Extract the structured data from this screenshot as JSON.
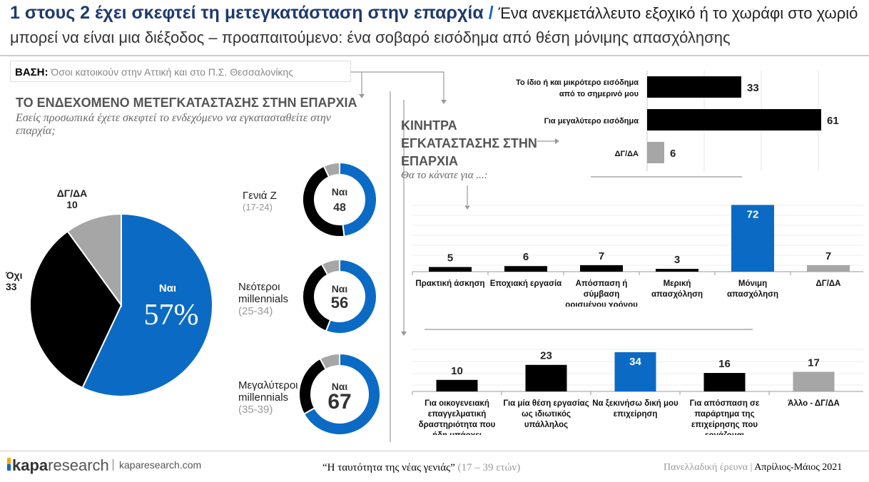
{
  "header": {
    "title_bold": "1 στους 2 έχει σκεφτεί τη μετεγκατάσταση στην επαρχία",
    "separator": "/",
    "title_rest": "Ένα ανεκμετάλλευτο εξοχικό ή το χωράφι στο χωριό",
    "subtitle": "μπορεί να είναι μια διέξοδος – προαπαιτούμενο: ένα σοβαρό εισόδημα από θέση μόνιμης απασχόλησης"
  },
  "base": {
    "label": "ΒΑΣΗ:",
    "value": "Όσοι κατοικούν στην Αττική και στο Π.Σ. Θεσσαλονίκης"
  },
  "left": {
    "title": "ΤΟ ΕΝΔΕΧΟΜΕΝΟ ΜΕΤΕΓΚΑΤΑΣΤΑΣΗΣ ΣΤΗΝ ΕΠΑΡΧΙΑ",
    "question": "Εσείς προσωπικά έχετε σκεφτεί το ενδεχόμενο να εγκατασταθείτε στην επαρχία;"
  },
  "right": {
    "title_l1": "ΚΙΝΗΤΡΑ",
    "title_l2": "ΕΓΚΑΤΑΣΤΑΣΗΣ ΣΤΗΝ",
    "title_l3": "ΕΠΑΡΧΙΑ",
    "question": "Θα το κάνατε για ...:"
  },
  "colors": {
    "yes": "#0b6bc4",
    "no": "#000000",
    "dk": "#a6a6a6",
    "title": "#1f3a6d"
  },
  "chart_data": [
    {
      "type": "pie",
      "slices": [
        {
          "label": "Ναι",
          "value": 57,
          "display": "57%",
          "color": "#0b6bc4"
        },
        {
          "label": "Όχι",
          "value": 33,
          "color": "#000000"
        },
        {
          "label": "ΔΓ/ΔΑ",
          "value": 10,
          "color": "#a6a6a6"
        }
      ]
    },
    {
      "type": "donut",
      "groups": [
        {
          "name": "Γενιά Ζ",
          "range": "(17-24)",
          "center_label": "Ναι",
          "values": [
            48,
            45,
            7
          ]
        },
        {
          "name_l1": "Νεότεροι",
          "name_l2": "millennials",
          "range": "(25-34)",
          "center_label": "Ναι",
          "values": [
            56,
            36,
            8
          ]
        },
        {
          "name_l1": "Μεγαλύτεροι",
          "name_l2": "millennials",
          "range": "(35-39)",
          "center_label": "Ναι",
          "values": [
            67,
            25,
            8
          ]
        }
      ]
    },
    {
      "type": "bar",
      "orientation": "horizontal",
      "categories": [
        "Το ίδιο ή και μικρότερο εισόδημα από το σημερινό μου",
        "Για μεγαλύτερο εισόδημα",
        "ΔΓ/ΔΑ"
      ],
      "cat_lines": [
        [
          "Το ίδιο ή και μικρότερο εισόδημα",
          "από το σημερινό μου"
        ],
        [
          "Για μεγαλύτερο εισόδημα"
        ],
        [
          "ΔΓ/ΔΑ"
        ]
      ],
      "values": [
        33,
        61,
        6
      ],
      "colors": [
        "#000000",
        "#000000",
        "#a6a6a6"
      ]
    },
    {
      "type": "bar",
      "categories": [
        "Πρακτική άσκηση",
        "Εποχιακή εργασία",
        "Απόσπαση ή σύμβαση ορισμένου χρόνου",
        "Μερική απασχόληση",
        "Μόνιμη απασχόληση",
        "ΔΓ/ΔΑ"
      ],
      "cat_lines": [
        [
          "Πρακτική άσκηση"
        ],
        [
          "Εποχιακή εργασία"
        ],
        [
          "Απόσπαση ή",
          "σύμβαση",
          "ορισμένου χρόνου"
        ],
        [
          "Μερική",
          "απασχόληση"
        ],
        [
          "Μόνιμη",
          "απασχόληση"
        ],
        [
          "ΔΓ/ΔΑ"
        ]
      ],
      "values": [
        5,
        6,
        7,
        3,
        72,
        7
      ],
      "colors": [
        "#000000",
        "#000000",
        "#000000",
        "#000000",
        "#0b6bc4",
        "#a6a6a6"
      ]
    },
    {
      "type": "bar",
      "categories": [
        "Για οικογενειακή επαγγελματική δραστηριότητα που ήδη υπάρχει",
        "Για μία θέση εργασίας ως ιδιωτικός υπάλληλος",
        "Να ξεκινήσω δική μου επιχείρηση",
        "Για απόσπαση σε παράρτημα της επιχείρησης που εργάζομαι",
        "Άλλο - ΔΓ/ΔΑ"
      ],
      "cat_lines": [
        [
          "Για οικογενειακή",
          "επαγγελματική",
          "δραστηριότητα που",
          "ήδη υπάρχει"
        ],
        [
          "Για μία θέση εργασίας",
          "ως ιδιωτικός",
          "υπάλληλος"
        ],
        [
          "Να ξεκινήσω δική μου",
          "επιχείρηση"
        ],
        [
          "Για απόσπαση σε",
          "παράρτημα της",
          "επιχείρησης που",
          "εργάζομαι"
        ],
        [
          "Άλλο - ΔΓ/ΔΑ"
        ]
      ],
      "values": [
        10,
        23,
        34,
        16,
        17
      ],
      "colors": [
        "#000000",
        "#000000",
        "#0b6bc4",
        "#000000",
        "#a6a6a6"
      ]
    }
  ],
  "footer": {
    "brand_bold": "kapa",
    "brand_rest": "research",
    "site": "kaparesearch.com",
    "study": "“Η ταυτότητα της νέας γενιάς”",
    "ages": "(17 – 39 ετών)",
    "survey": "Πανελλαδική έρευνα |",
    "date": "Απρίλιος-Μάιος 2021"
  }
}
